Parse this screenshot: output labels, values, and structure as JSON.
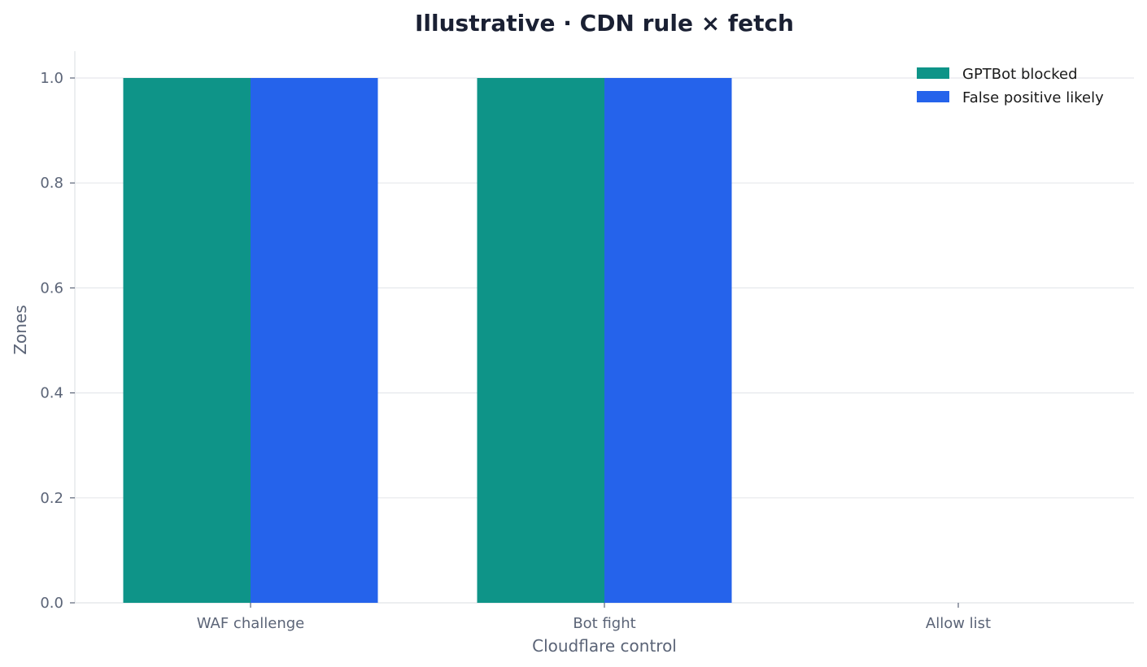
{
  "chart_data": {
    "type": "bar",
    "title": "Illustrative · CDN rule × fetch",
    "xlabel": "Cloudflare control",
    "ylabel": "Zones",
    "categories": [
      "WAF challenge",
      "Bot fight",
      "Allow list"
    ],
    "series": [
      {
        "name": "GPTBot blocked",
        "values": [
          1,
          1,
          0
        ],
        "color": "#0e9488"
      },
      {
        "name": "False positive likely",
        "values": [
          1,
          1,
          0
        ],
        "color": "#2563eb"
      }
    ],
    "ylim": [
      0,
      1.05
    ],
    "yticks": [
      "0.0",
      "0.2",
      "0.4",
      "0.6",
      "0.8",
      "1.0"
    ],
    "grid": true,
    "legend_position": "top-right"
  }
}
